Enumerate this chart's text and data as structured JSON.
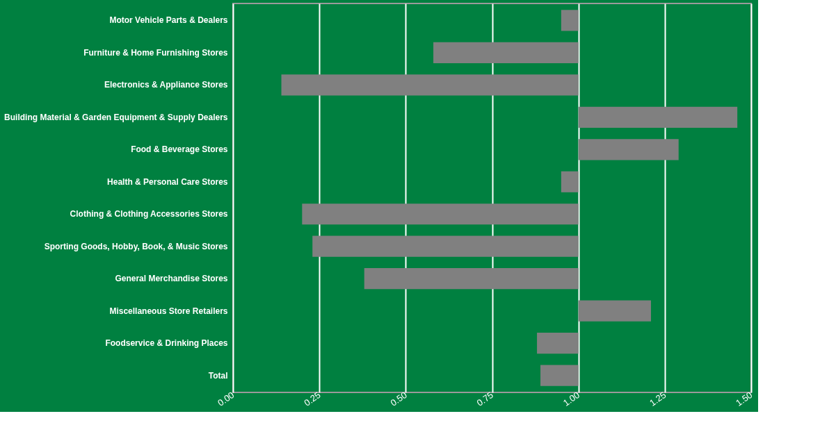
{
  "chart_data": {
    "type": "bar",
    "orientation": "horizontal",
    "categories": [
      "Motor Vehicle Parts & Dealers",
      "Furniture & Home Furnishing Stores",
      "Electronics & Appliance Stores",
      "Building Material & Garden Equipment & Supply Dealers",
      "Food & Beverage Stores",
      "Health & Personal Care Stores",
      "Clothing & Clothing Accessories Stores",
      "Sporting Goods, Hobby, Book, & Music Stores",
      "General Merchandise Stores",
      "Miscellaneous Store Retailers",
      "Foodservice & Drinking Places",
      "Total"
    ],
    "base": [
      1,
      1,
      1,
      1,
      1,
      1,
      1,
      1,
      1,
      1,
      1,
      1
    ],
    "values": [
      -0.05,
      -0.42,
      -0.86,
      0.46,
      0.29,
      -0.05,
      -0.8,
      -0.77,
      -0.62,
      0.21,
      -0.12,
      -0.11
    ],
    "color": "#808080",
    "xlim": [
      0,
      1.5
    ],
    "xticks": [
      {
        "value": 0,
        "label": "0.00"
      },
      {
        "value": 0.25,
        "label": "0.25"
      },
      {
        "value": 0.5,
        "label": "0.50"
      },
      {
        "value": 0.75,
        "label": "0.75"
      },
      {
        "value": 1,
        "label": "1.00"
      },
      {
        "value": 1.25,
        "label": "1.25"
      },
      {
        "value": 1.5,
        "label": "1.50"
      }
    ],
    "grid": "x"
  }
}
